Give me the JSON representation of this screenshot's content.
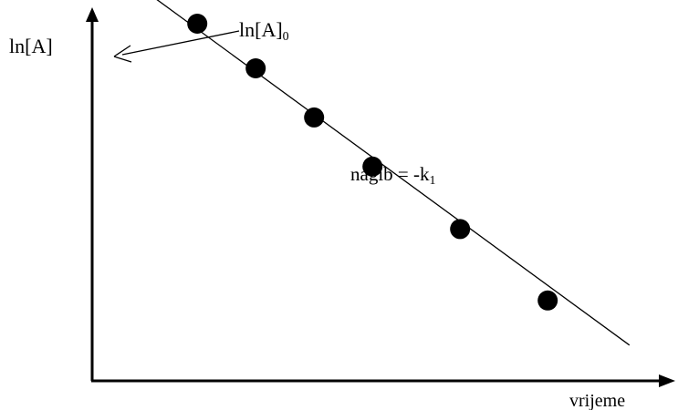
{
  "chart_data": {
    "type": "scatter",
    "xlabel": "vrijeme",
    "ylabel": "ln[A]",
    "annotations": {
      "intercept_label": "ln[A]",
      "intercept_sub": "0",
      "slope_label": "nagib = -k",
      "slope_sub": "1"
    },
    "xlim": [
      0,
      10
    ],
    "ylim": [
      0,
      10
    ],
    "points": [
      {
        "x": 0.8,
        "y": 9.1
      },
      {
        "x": 1.8,
        "y": 8.0
      },
      {
        "x": 2.8,
        "y": 7.0
      },
      {
        "x": 3.8,
        "y": 5.9
      },
      {
        "x": 4.8,
        "y": 4.8
      },
      {
        "x": 6.3,
        "y": 3.4
      },
      {
        "x": 7.8,
        "y": 1.8
      }
    ],
    "line": {
      "x0": 0,
      "y0": 9.6,
      "x1": 9.2,
      "y1": 0.8
    },
    "grid": false,
    "legend": "none",
    "colors": {
      "ink": "#000000"
    }
  }
}
